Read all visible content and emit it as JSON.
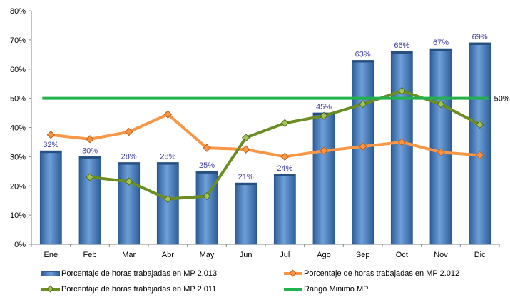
{
  "chart_data": {
    "type": "bar",
    "title": "",
    "xlabel": "",
    "ylabel": "",
    "ylim": [
      0,
      80
    ],
    "y_ticks": [
      "0%",
      "10%",
      "20%",
      "30%",
      "40%",
      "50%",
      "60%",
      "70%",
      "80%"
    ],
    "y_tick_values": [
      0,
      10,
      20,
      30,
      40,
      50,
      60,
      70,
      80
    ],
    "grid": false,
    "legend_position": "bottom",
    "categories": [
      "Ene",
      "Feb",
      "Mar",
      "Abr",
      "May",
      "Jun",
      "Jul",
      "Ago",
      "Sep",
      "Oct",
      "Nov",
      "Dic"
    ],
    "series": [
      {
        "name": "Porcentaje de horas trabajadas en MP 2.013",
        "kind": "bar",
        "color": "#4f81bd",
        "values": [
          32,
          30,
          28,
          28,
          25,
          21,
          24,
          45,
          63,
          66,
          67,
          69
        ],
        "labels": [
          "32%",
          "30%",
          "28%",
          "28%",
          "25%",
          "21%",
          "24%",
          "45%",
          "63%",
          "66%",
          "67%",
          "69%"
        ]
      },
      {
        "name": "Porcentaje de horas trabajadas en MP 2.012",
        "kind": "line",
        "color": "#f79646",
        "values": [
          37.5,
          36,
          38.5,
          44.5,
          33,
          32.5,
          30,
          32,
          33.5,
          35,
          31.5,
          30.5
        ]
      },
      {
        "name": "Porcentaje de horas trabajadas en MP 2.011",
        "kind": "line",
        "color": "#6b8e23",
        "values": [
          null,
          23,
          21.5,
          15.5,
          16.5,
          36.5,
          41.5,
          44,
          48,
          52.5,
          48,
          41
        ]
      },
      {
        "name": "Rango Minimo MP",
        "kind": "reference",
        "color": "#22b14c",
        "value": 50,
        "label": "50%"
      }
    ]
  }
}
